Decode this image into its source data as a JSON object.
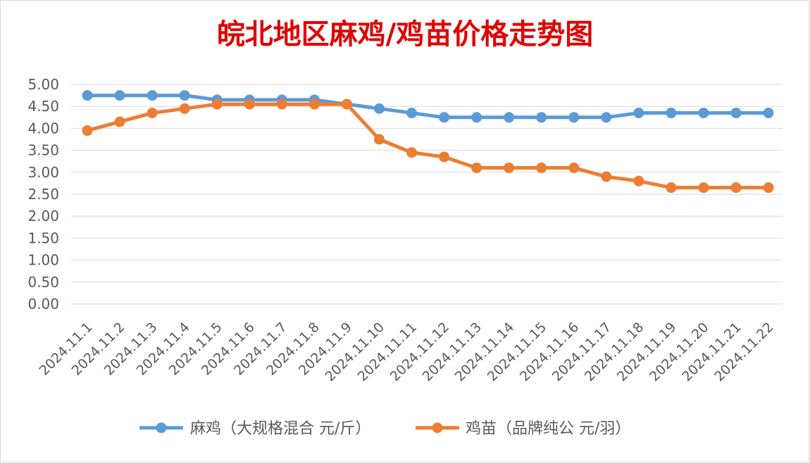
{
  "chart_data": {
    "type": "line",
    "title": "皖北地区麻鸡/鸡苗价格走势图",
    "categories": [
      "2024.11.1",
      "2024.11.2",
      "2024.11.3",
      "2024.11.4",
      "2024.11.5",
      "2024.11.6",
      "2024.11.7",
      "2024.11.8",
      "2024.11.9",
      "2024.11.10",
      "2024.11.11",
      "2024.11.12",
      "2024.11.13",
      "2024.11.14",
      "2024.11.15",
      "2024.11.16",
      "2024.11.17",
      "2024.11.18",
      "2024.11.19",
      "2024.11.20",
      "2024.11.21",
      "2024.11.22"
    ],
    "series": [
      {
        "name": "麻鸡（大规格混合 元/斤）",
        "color": "#5b9bd5",
        "values": [
          4.75,
          4.75,
          4.75,
          4.75,
          4.65,
          4.65,
          4.65,
          4.65,
          4.55,
          4.45,
          4.35,
          4.25,
          4.25,
          4.25,
          4.25,
          4.25,
          4.25,
          4.35,
          4.35,
          4.35,
          4.35,
          4.35
        ]
      },
      {
        "name": "鸡苗（品牌纯公 元/羽）",
        "color": "#ed7d31",
        "values": [
          3.95,
          4.15,
          4.35,
          4.45,
          4.55,
          4.55,
          4.55,
          4.55,
          4.55,
          3.75,
          3.45,
          3.35,
          3.1,
          3.1,
          3.1,
          3.1,
          2.9,
          2.8,
          2.65,
          2.65,
          2.65,
          2.65
        ]
      }
    ],
    "ylim": [
      0,
      5
    ],
    "yticks": [
      "0.00",
      "0.50",
      "1.00",
      "1.50",
      "2.00",
      "2.50",
      "3.00",
      "3.50",
      "4.00",
      "4.50",
      "5.00"
    ],
    "grid": true,
    "legend": "bottom"
  }
}
